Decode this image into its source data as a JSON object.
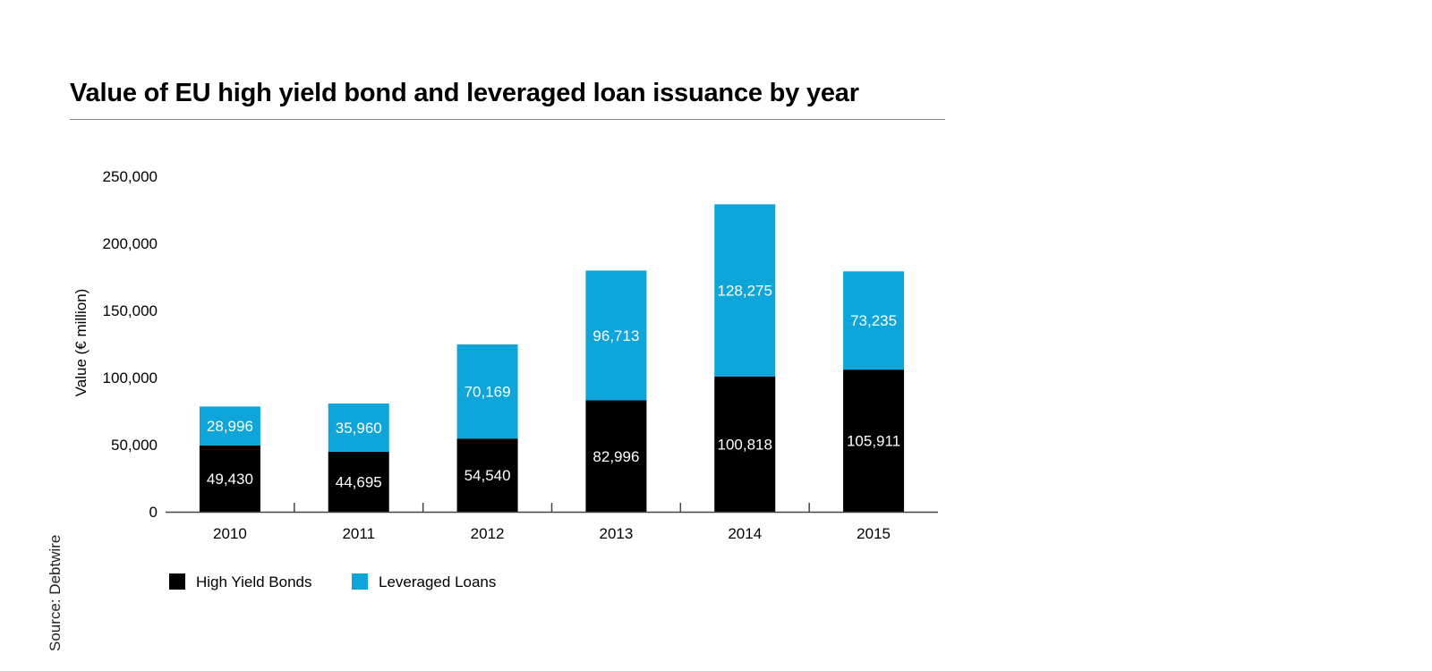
{
  "title": "Value of EU high yield bond and leveraged loan issuance by year",
  "source": "Source: Debtwire",
  "colors": {
    "bonds": "#000000",
    "loans": "#0ea5da",
    "axis": "#444444"
  },
  "chart_data": {
    "type": "bar",
    "stacked": true,
    "title": "Value of EU high yield bond and leveraged loan issuance by year",
    "xlabel": "",
    "ylabel": "Value (€ million)",
    "ylim": [
      0,
      250000
    ],
    "yticks": [
      0,
      50000,
      100000,
      150000,
      200000,
      250000
    ],
    "ytick_labels": [
      "0",
      "50,000",
      "100,000",
      "150,000",
      "200,000",
      "250,000"
    ],
    "categories": [
      "2010",
      "2011",
      "2012",
      "2013",
      "2014",
      "2015"
    ],
    "series": [
      {
        "name": "High Yield Bonds",
        "values": [
          49430,
          44695,
          54540,
          82996,
          100818,
          105911
        ],
        "labels": [
          "49,430",
          "44,695",
          "54,540",
          "82,996",
          "100,818",
          "105,911"
        ]
      },
      {
        "name": "Leveraged Loans",
        "values": [
          28996,
          35960,
          70169,
          96713,
          128275,
          73235
        ],
        "labels": [
          "28,996",
          "35,960",
          "70,169",
          "96,713",
          "128,275",
          "73,235"
        ]
      }
    ],
    "legend_position": "bottom-left",
    "grid": false
  }
}
